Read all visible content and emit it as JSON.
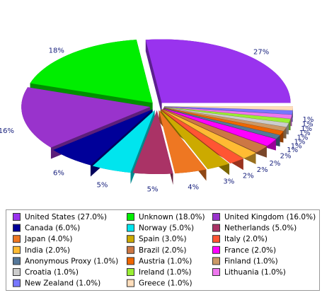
{
  "chart_data": {
    "type": "pie",
    "categories": [
      "United States (27.0%)",
      "Unknown (18.0%)",
      "United Kingdom (16.0%)",
      "Canada (6.0%)",
      "Norway (5.0%)",
      "Netherlands (5.0%)",
      "Japan (4.0%)",
      "Spain (3.0%)",
      "Italy (2.0%)",
      "India (2.0%)",
      "Brazil (2.0%)",
      "France (2.0%)",
      "Anonymous Proxy (1.0%)",
      "Austria (1.0%)",
      "Finland (1.0%)",
      "Croatia (1.0%)",
      "Ireland (1.0%)",
      "Lithuania (1.0%)",
      "New Zealand (1.0%)",
      "Greece (1.0%)"
    ],
    "values": [
      27,
      18,
      16,
      6,
      5,
      5,
      4,
      3,
      2,
      2,
      2,
      2,
      1,
      1,
      1,
      1,
      1,
      1,
      1,
      1
    ],
    "value_labels": [
      "27%",
      "18%",
      "16%",
      "6%",
      "5%",
      "5%",
      "4%",
      "3%",
      "2%",
      "2%",
      "2%",
      "2%",
      "1%",
      "1%",
      "1%",
      "1%",
      "1%",
      "1%",
      "1%",
      "1%"
    ],
    "colors": [
      "#9933ee",
      "#00ee00",
      "#9933cc",
      "#000099",
      "#00e5ee",
      "#aa3366",
      "#ee7722",
      "#ccaa00",
      "#ff5533",
      "#ffbb33",
      "#cc7744",
      "#ff00ff",
      "#557799",
      "#ee6600",
      "#cc9966",
      "#cccccc",
      "#99ee33",
      "#ee77ee",
      "#7777ff",
      "#ffddbb"
    ]
  }
}
